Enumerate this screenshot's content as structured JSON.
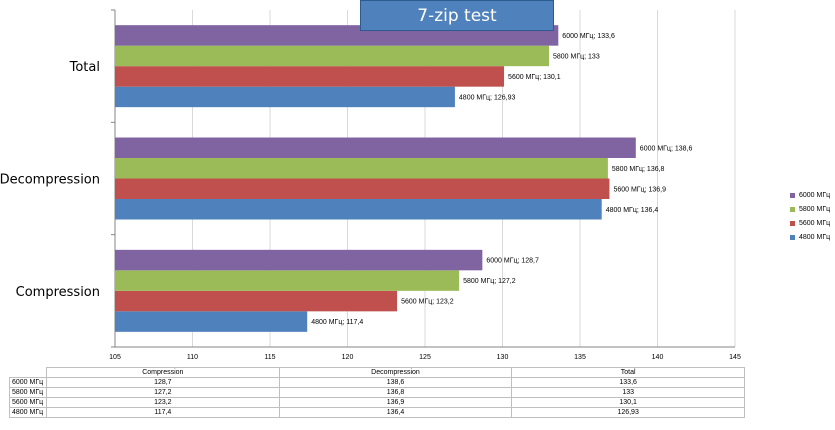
{
  "chart_data": {
    "type": "bar",
    "orientation": "horizontal",
    "title": "7-zip test",
    "categories": [
      "Compression",
      "Decompression",
      "Total"
    ],
    "series": [
      {
        "name": "4800 МГц",
        "color": "#4F81BD",
        "values": [
          117.4,
          136.4,
          126.93
        ],
        "labels": [
          "4800 МГц; 117,4",
          "4800 МГц; 136,4",
          "4800 МГц; 126,93"
        ]
      },
      {
        "name": "5600 МГц",
        "color": "#C0504D",
        "values": [
          123.2,
          136.9,
          130.1
        ],
        "labels": [
          "5600 МГц; 123,2",
          "5600 МГц; 136,9",
          "5600 МГц; 130,1"
        ]
      },
      {
        "name": "5800 МГц",
        "color": "#9BBB59",
        "values": [
          127.2,
          136.8,
          133
        ],
        "labels": [
          "5800 МГц; 127,2",
          "5800 МГц; 136,8",
          "5800 МГц; 133"
        ]
      },
      {
        "name": "6000 МГц",
        "color": "#8064A2",
        "values": [
          128.7,
          138.6,
          133.6
        ],
        "labels": [
          "6000 МГц; 128,7",
          "6000 МГц; 138,6",
          "6000 МГц; 133,6"
        ]
      }
    ],
    "xlim": [
      105,
      145
    ],
    "xticks": [
      "105",
      "110",
      "115",
      "120",
      "125",
      "130",
      "135",
      "140",
      "145"
    ],
    "grid": true,
    "legend": "right"
  },
  "table": {
    "headers": [
      "Compression",
      "Decompression",
      "Total"
    ],
    "rows": [
      {
        "label": "6000 МГц",
        "values": [
          "128,7",
          "138,6",
          "133,6"
        ]
      },
      {
        "label": "5800 МГц",
        "values": [
          "127,2",
          "136,8",
          "133"
        ]
      },
      {
        "label": "5600 МГц",
        "values": [
          "123,2",
          "136,9",
          "130,1"
        ]
      },
      {
        "label": "4800 МГц",
        "values": [
          "117,4",
          "136,4",
          "126,93"
        ]
      }
    ]
  },
  "legend": {
    "items": [
      {
        "label": "6000 МГц",
        "color": "#8064A2"
      },
      {
        "label": "5800 МГц",
        "color": "#9BBB59"
      },
      {
        "label": "5600 МГц",
        "color": "#C0504D"
      },
      {
        "label": "4800 МГц",
        "color": "#4F81BD"
      }
    ]
  }
}
